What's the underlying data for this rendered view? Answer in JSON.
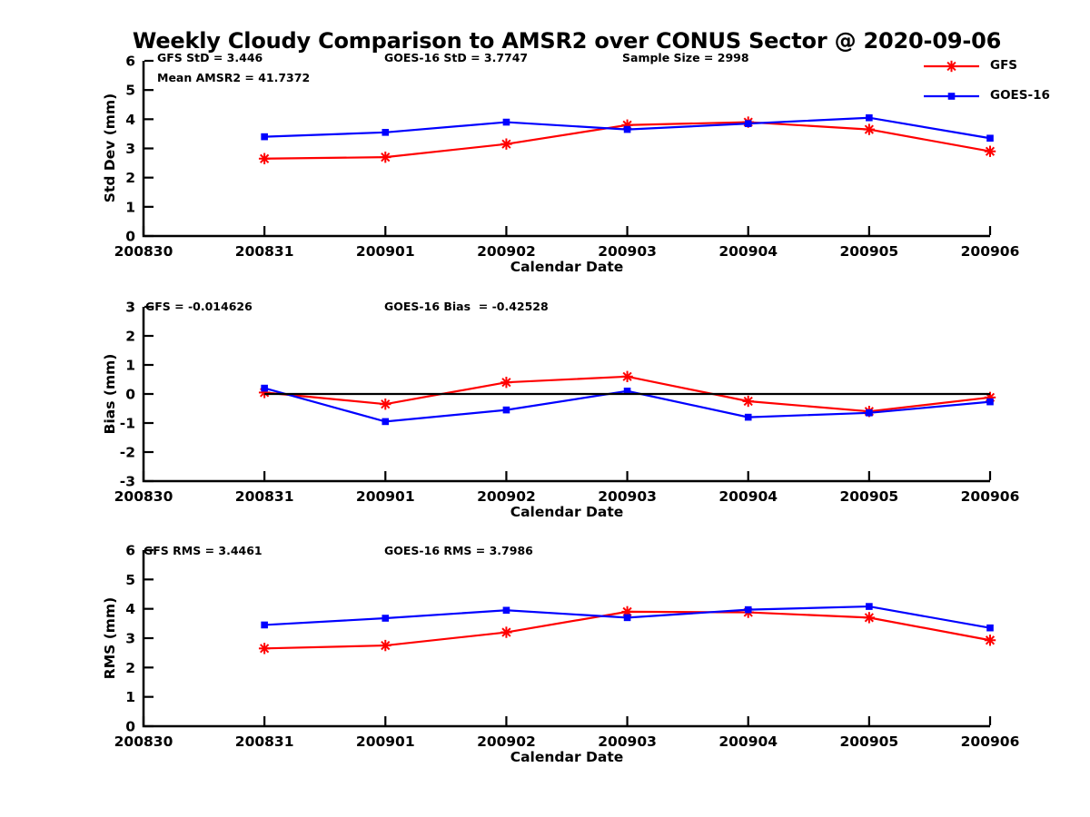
{
  "title": "Weekly Cloudy Comparison to AMSR2 over CONUS Sector @ 2020-09-06",
  "colors": {
    "gfs_red": "#ff0000",
    "goes_blue": "#0000ff",
    "axis_black": "#000000"
  },
  "legend": {
    "items": [
      {
        "label": "GFS",
        "color": "#ff0000",
        "marker": "star"
      },
      {
        "label": "GOES-16",
        "color": "#0000ff",
        "marker": "square"
      }
    ]
  },
  "x_axis": {
    "label": "Calendar Date",
    "tick_labels": [
      "200830",
      "200831",
      "200901",
      "200902",
      "200903",
      "200904",
      "200905",
      "200906"
    ]
  },
  "chart_data": [
    {
      "type": "line",
      "name": "std-dev-subplot",
      "ylabel": "Std Dev (mm)",
      "xlabel": "Calendar Date",
      "ylim": [
        0,
        6
      ],
      "yticks": [
        0,
        1,
        2,
        3,
        4,
        5,
        6
      ],
      "zero_line": false,
      "x": [
        "200831",
        "200901",
        "200902",
        "200903",
        "200904",
        "200905",
        "200906"
      ],
      "series": [
        {
          "name": "GFS",
          "color": "#ff0000",
          "marker": "star",
          "values": [
            2.65,
            2.7,
            3.15,
            3.8,
            3.9,
            3.65,
            2.9
          ]
        },
        {
          "name": "GOES-16",
          "color": "#0000ff",
          "marker": "square",
          "values": [
            3.4,
            3.55,
            3.9,
            3.65,
            3.85,
            4.05,
            3.35
          ]
        }
      ],
      "annotations": [
        {
          "text": "GFS StD = 3.446"
        },
        {
          "text": "Mean AMSR2 = 41.7372"
        },
        {
          "text": "GOES-16 StD = 3.7747"
        },
        {
          "text": "Sample Size = 2998"
        }
      ]
    },
    {
      "type": "line",
      "name": "bias-subplot",
      "ylabel": "Bias (mm)",
      "xlabel": "Calendar Date",
      "ylim": [
        -3,
        3
      ],
      "yticks": [
        -3,
        -2,
        -1,
        0,
        1,
        2,
        3
      ],
      "zero_line": true,
      "x": [
        "200831",
        "200901",
        "200902",
        "200903",
        "200904",
        "200905",
        "200906"
      ],
      "series": [
        {
          "name": "GFS",
          "color": "#ff0000",
          "marker": "star",
          "values": [
            0.05,
            -0.35,
            0.4,
            0.6,
            -0.25,
            -0.6,
            -0.12
          ]
        },
        {
          "name": "GOES-16",
          "color": "#0000ff",
          "marker": "square",
          "values": [
            0.2,
            -0.95,
            -0.55,
            0.1,
            -0.8,
            -0.65,
            -0.27
          ]
        }
      ],
      "annotations": [
        {
          "text": "GFS = -0.014626"
        },
        {
          "text": "GOES-16 Bias  = -0.42528"
        }
      ]
    },
    {
      "type": "line",
      "name": "rms-subplot",
      "ylabel": "RMS (mm)",
      "xlabel": "Calendar Date",
      "ylim": [
        0,
        6
      ],
      "yticks": [
        0,
        1,
        2,
        3,
        4,
        5,
        6
      ],
      "zero_line": false,
      "x": [
        "200831",
        "200901",
        "200902",
        "200903",
        "200904",
        "200905",
        "200906"
      ],
      "series": [
        {
          "name": "GFS",
          "color": "#ff0000",
          "marker": "star",
          "values": [
            2.65,
            2.75,
            3.2,
            3.9,
            3.88,
            3.7,
            2.93
          ]
        },
        {
          "name": "GOES-16",
          "color": "#0000ff",
          "marker": "square",
          "values": [
            3.45,
            3.68,
            3.95,
            3.7,
            3.97,
            4.08,
            3.35
          ]
        }
      ],
      "annotations": [
        {
          "text": "GFS RMS = 3.4461"
        },
        {
          "text": "GOES-16 RMS = 3.7986"
        }
      ]
    }
  ]
}
